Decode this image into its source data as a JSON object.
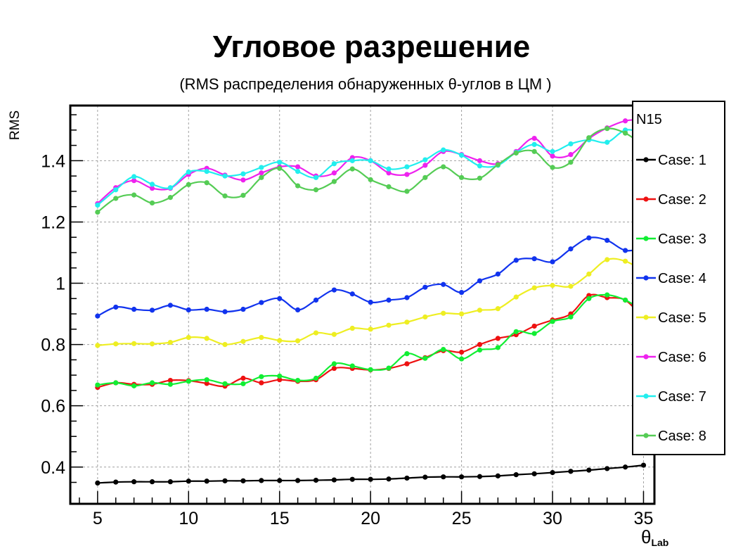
{
  "page": {
    "title": "Угловое разрешение",
    "subtitle": "(RMS распределения обнаруженных θ-углов в ЦМ )"
  },
  "chart_data": {
    "type": "line",
    "title": "Угловое разрешение",
    "subtitle": "(RMS распределения обнаруженных θ-углов в ЦМ )",
    "xlabel_main": "θ",
    "xlabel_sub": "Lab",
    "ylabel": "RMS",
    "xlim": [
      3.5,
      35.6
    ],
    "ylim": [
      0.28,
      1.58
    ],
    "xticks": [
      5,
      10,
      15,
      20,
      25,
      30,
      35
    ],
    "xtick_labels": [
      "5",
      "10",
      "15",
      "20",
      "25",
      "30",
      "35"
    ],
    "yticks": [
      0.4,
      0.6,
      0.8,
      1.0,
      1.2,
      1.4
    ],
    "ytick_labels": [
      "0.4",
      "0.6",
      "0.8",
      "1",
      "1.2",
      "1.4"
    ],
    "grid": true,
    "legend_title": "N15",
    "legend_placement": "right",
    "x": [
      5,
      6,
      7,
      8,
      9,
      10,
      11,
      12,
      13,
      14,
      15,
      16,
      17,
      18,
      19,
      20,
      21,
      22,
      23,
      24,
      25,
      26,
      27,
      28,
      29,
      30,
      31,
      32,
      33,
      34,
      35
    ],
    "series": [
      {
        "name": "Case: 1",
        "color": "#000000",
        "values": [
          0.348,
          0.351,
          0.352,
          0.352,
          0.352,
          0.354,
          0.354,
          0.355,
          0.355,
          0.356,
          0.356,
          0.356,
          0.357,
          0.358,
          0.36,
          0.36,
          0.361,
          0.364,
          0.367,
          0.368,
          0.368,
          0.369,
          0.371,
          0.375,
          0.378,
          0.382,
          0.386,
          0.39,
          0.395,
          0.4,
          0.406
        ]
      },
      {
        "name": "Case: 2",
        "color": "#ee1111",
        "values": [
          0.66,
          0.675,
          0.67,
          0.67,
          0.683,
          0.682,
          0.673,
          0.664,
          0.69,
          0.675,
          0.685,
          0.68,
          0.685,
          0.722,
          0.722,
          0.717,
          0.722,
          0.737,
          0.757,
          0.78,
          0.775,
          0.8,
          0.82,
          0.832,
          0.86,
          0.88,
          0.9,
          0.96,
          0.953,
          0.945,
          0.885
        ]
      },
      {
        "name": "Case: 3",
        "color": "#11ee33",
        "values": [
          0.668,
          0.675,
          0.665,
          0.675,
          0.67,
          0.68,
          0.685,
          0.672,
          0.672,
          0.695,
          0.697,
          0.683,
          0.69,
          0.737,
          0.73,
          0.718,
          0.723,
          0.77,
          0.755,
          0.784,
          0.753,
          0.782,
          0.79,
          0.842,
          0.836,
          0.875,
          0.89,
          0.95,
          0.962,
          0.945,
          0.91
        ]
      },
      {
        "name": "Case: 4",
        "color": "#1133ee",
        "values": [
          0.893,
          0.922,
          0.915,
          0.912,
          0.928,
          0.913,
          0.915,
          0.907,
          0.915,
          0.937,
          0.95,
          0.913,
          0.945,
          0.978,
          0.965,
          0.938,
          0.945,
          0.953,
          0.987,
          0.996,
          0.97,
          1.008,
          1.03,
          1.075,
          1.08,
          1.07,
          1.112,
          1.148,
          1.14,
          1.107,
          1.115
        ]
      },
      {
        "name": "Case: 5",
        "color": "#eeee22",
        "values": [
          0.797,
          0.802,
          0.803,
          0.802,
          0.807,
          0.823,
          0.82,
          0.8,
          0.81,
          0.823,
          0.813,
          0.812,
          0.838,
          0.833,
          0.853,
          0.85,
          0.863,
          0.873,
          0.89,
          0.902,
          0.9,
          0.912,
          0.917,
          0.955,
          0.985,
          0.993,
          0.99,
          1.03,
          1.077,
          1.072,
          1.04
        ]
      },
      {
        "name": "Case: 6",
        "color": "#ee22ee",
        "values": [
          1.26,
          1.312,
          1.335,
          1.31,
          1.31,
          1.355,
          1.375,
          1.353,
          1.337,
          1.36,
          1.38,
          1.38,
          1.35,
          1.36,
          1.41,
          1.4,
          1.36,
          1.355,
          1.385,
          1.43,
          1.42,
          1.4,
          1.39,
          1.43,
          1.473,
          1.415,
          1.42,
          1.472,
          1.507,
          1.53,
          1.535
        ]
      },
      {
        "name": "Case: 7",
        "color": "#22eeee",
        "values": [
          1.255,
          1.305,
          1.348,
          1.323,
          1.312,
          1.363,
          1.365,
          1.35,
          1.357,
          1.378,
          1.395,
          1.365,
          1.345,
          1.39,
          1.4,
          1.4,
          1.373,
          1.38,
          1.403,
          1.435,
          1.418,
          1.383,
          1.385,
          1.427,
          1.453,
          1.43,
          1.455,
          1.468,
          1.46,
          1.5,
          1.49
        ]
      },
      {
        "name": "Case: 8",
        "color": "#55cc55",
        "values": [
          1.232,
          1.277,
          1.288,
          1.262,
          1.28,
          1.322,
          1.328,
          1.285,
          1.287,
          1.345,
          1.375,
          1.318,
          1.305,
          1.332,
          1.373,
          1.338,
          1.315,
          1.3,
          1.345,
          1.38,
          1.345,
          1.343,
          1.387,
          1.425,
          1.43,
          1.378,
          1.395,
          1.475,
          1.505,
          1.49,
          1.45
        ]
      }
    ]
  }
}
